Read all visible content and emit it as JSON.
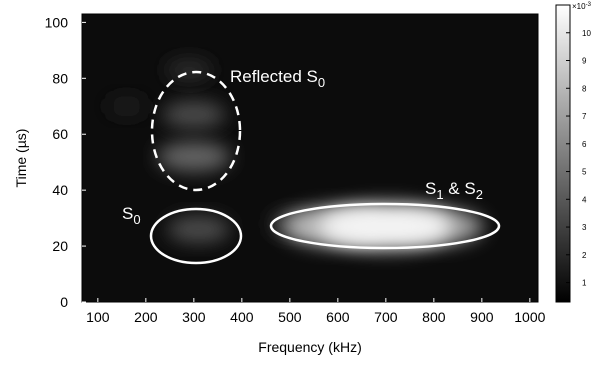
{
  "chart_data": {
    "type": "heatmap",
    "xlabel": "Frequency  (kHz)",
    "ylabel": "Time  (µs)",
    "xlim": [
      67,
      1017
    ],
    "xticks": [
      100,
      200,
      300,
      400,
      500,
      600,
      700,
      800,
      900,
      1000
    ],
    "ylim": [
      0,
      103
    ],
    "yticks": [
      0,
      20,
      40,
      60,
      80,
      100
    ],
    "clim": [
      0.3,
      11
    ],
    "cticks": [
      1,
      2,
      3,
      4,
      5,
      6,
      7,
      8,
      9,
      10
    ],
    "colorbar_scale": {
      "base": "×10",
      "exp": "-3"
    },
    "colormap": [
      "#000000",
      "#ffffff"
    ],
    "peaks": [
      {
        "frequency": 160,
        "time": 70,
        "value": 1.5
      },
      {
        "frequency": 290,
        "time": 83,
        "value": 2
      },
      {
        "frequency": 520,
        "time": 28,
        "value": 3
      },
      {
        "frequency": 310,
        "time": 26,
        "value": 3.5
      },
      {
        "frequency": 300,
        "time": 67,
        "value": 3.5
      },
      {
        "frequency": 300,
        "time": 52,
        "value": 4.5
      },
      {
        "frequency": 800,
        "time": 27,
        "value": 7
      },
      {
        "frequency": 600,
        "time": 27,
        "value": 8
      },
      {
        "frequency": 700,
        "time": 27,
        "value": 10.5
      }
    ],
    "annotations": [
      {
        "text": "Reflected S",
        "sub": "0"
      },
      {
        "text": "S",
        "sub": "0"
      },
      {
        "text": "S",
        "sub": "1",
        "text2": " & S",
        "sub2": "2"
      }
    ]
  }
}
